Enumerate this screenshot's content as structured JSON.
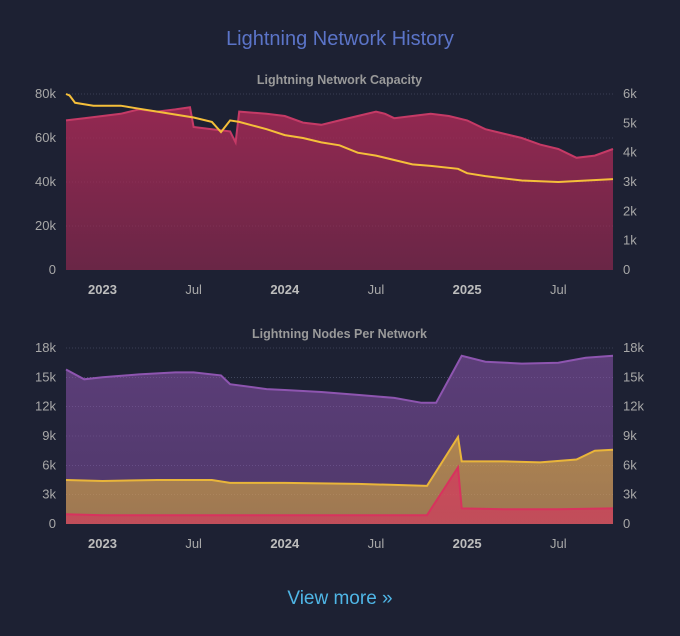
{
  "page": {
    "title": "Lightning Network History",
    "view_more": "View more »"
  },
  "colors": {
    "background": "#1d2133",
    "title": "#5b74c8",
    "link": "#4fb6e6",
    "capacity_fill": "#a82a56",
    "capacity_line": "#c53a66",
    "channels_line": "#f5bf3a",
    "clearnet": "#8e55b0",
    "tor": "#e9b53a",
    "unannounced": "#d8325e"
  },
  "chart_data": [
    {
      "type": "area",
      "title": "Lightning Network Capacity",
      "x_ticks": [
        {
          "label": "2023",
          "t": 2023.0,
          "bold": true
        },
        {
          "label": "Jul",
          "t": 2023.5,
          "bold": false
        },
        {
          "label": "2024",
          "t": 2024.0,
          "bold": true
        },
        {
          "label": "Jul",
          "t": 2024.5,
          "bold": false
        },
        {
          "label": "2025",
          "t": 2025.0,
          "bold": true
        },
        {
          "label": "Jul",
          "t": 2025.5,
          "bold": false
        }
      ],
      "xlim": [
        2022.8,
        2025.8
      ],
      "y_left": {
        "ticks": [
          "0",
          "20k",
          "40k",
          "60k",
          "80k"
        ],
        "values": [
          0,
          20000,
          40000,
          60000,
          80000
        ],
        "ylim": [
          0,
          80000
        ]
      },
      "y_right": {
        "ticks": [
          "0",
          "1k",
          "2k",
          "3k",
          "4k",
          "5k",
          "6k"
        ],
        "values": [
          0,
          1000,
          2000,
          3000,
          4000,
          5000,
          6000
        ],
        "ylim": [
          0,
          6000
        ]
      },
      "series": [
        {
          "axis": "left",
          "kind": "area",
          "points": [
            [
              2022.8,
              68000
            ],
            [
              2022.9,
              69000
            ],
            [
              2023.0,
              70000
            ],
            [
              2023.1,
              71000
            ],
            [
              2023.2,
              73000
            ],
            [
              2023.3,
              72000
            ],
            [
              2023.4,
              73000
            ],
            [
              2023.48,
              74000
            ],
            [
              2023.5,
              65000
            ],
            [
              2023.6,
              64000
            ],
            [
              2023.7,
              63000
            ],
            [
              2023.73,
              58000
            ],
            [
              2023.75,
              72000
            ],
            [
              2023.9,
              71000
            ],
            [
              2024.0,
              70000
            ],
            [
              2024.1,
              67000
            ],
            [
              2024.2,
              66000
            ],
            [
              2024.3,
              68000
            ],
            [
              2024.4,
              70000
            ],
            [
              2024.5,
              72000
            ],
            [
              2024.55,
              71000
            ],
            [
              2024.6,
              69000
            ],
            [
              2024.7,
              70000
            ],
            [
              2024.8,
              71000
            ],
            [
              2024.9,
              70000
            ],
            [
              2025.0,
              68000
            ],
            [
              2025.1,
              64000
            ],
            [
              2025.2,
              62000
            ],
            [
              2025.3,
              60000
            ],
            [
              2025.4,
              57000
            ],
            [
              2025.5,
              55000
            ],
            [
              2025.6,
              51000
            ],
            [
              2025.7,
              52000
            ],
            [
              2025.8,
              55000
            ]
          ]
        },
        {
          "axis": "right",
          "kind": "line",
          "points": [
            [
              2022.8,
              6000
            ],
            [
              2022.82,
              5950
            ],
            [
              2022.85,
              5700
            ],
            [
              2022.95,
              5600
            ],
            [
              2023.1,
              5600
            ],
            [
              2023.2,
              5500
            ],
            [
              2023.3,
              5400
            ],
            [
              2023.5,
              5200
            ],
            [
              2023.6,
              5050
            ],
            [
              2023.65,
              4700
            ],
            [
              2023.7,
              5100
            ],
            [
              2023.75,
              5050
            ],
            [
              2023.9,
              4800
            ],
            [
              2024.0,
              4600
            ],
            [
              2024.1,
              4500
            ],
            [
              2024.2,
              4350
            ],
            [
              2024.3,
              4250
            ],
            [
              2024.4,
              4000
            ],
            [
              2024.5,
              3900
            ],
            [
              2024.6,
              3750
            ],
            [
              2024.7,
              3600
            ],
            [
              2024.8,
              3550
            ],
            [
              2024.95,
              3450
            ],
            [
              2025.0,
              3300
            ],
            [
              2025.1,
              3200
            ],
            [
              2025.3,
              3050
            ],
            [
              2025.5,
              3000
            ],
            [
              2025.8,
              3100
            ]
          ]
        }
      ]
    },
    {
      "type": "area",
      "title": "Lightning Nodes Per Network",
      "x_ticks": [
        {
          "label": "2023",
          "t": 2023.0,
          "bold": true
        },
        {
          "label": "Jul",
          "t": 2023.5,
          "bold": false
        },
        {
          "label": "2024",
          "t": 2024.0,
          "bold": true
        },
        {
          "label": "Jul",
          "t": 2024.5,
          "bold": false
        },
        {
          "label": "2025",
          "t": 2025.0,
          "bold": true
        },
        {
          "label": "Jul",
          "t": 2025.5,
          "bold": false
        }
      ],
      "xlim": [
        2022.8,
        2025.8
      ],
      "y_left": {
        "ticks": [
          "0",
          "3k",
          "6k",
          "9k",
          "12k",
          "15k",
          "18k"
        ],
        "values": [
          0,
          3000,
          6000,
          9000,
          12000,
          15000,
          18000
        ],
        "ylim": [
          0,
          18000
        ]
      },
      "y_right": {
        "ticks": [
          "0",
          "3k",
          "6k",
          "9k",
          "12k",
          "15k",
          "18k"
        ],
        "values": [
          0,
          3000,
          6000,
          9000,
          12000,
          15000,
          18000
        ],
        "ylim": [
          0,
          18000
        ]
      },
      "series": [
        {
          "axis": "left",
          "kind": "stack",
          "color": "clearnet",
          "points": [
            [
              2022.8,
              15800
            ],
            [
              2022.9,
              14800
            ],
            [
              2023.0,
              15000
            ],
            [
              2023.2,
              15300
            ],
            [
              2023.4,
              15500
            ],
            [
              2023.5,
              15500
            ],
            [
              2023.65,
              15200
            ],
            [
              2023.7,
              14300
            ],
            [
              2023.9,
              13800
            ],
            [
              2024.0,
              13700
            ],
            [
              2024.2,
              13500
            ],
            [
              2024.4,
              13200
            ],
            [
              2024.6,
              12900
            ],
            [
              2024.75,
              12400
            ],
            [
              2024.83,
              12400
            ],
            [
              2024.97,
              17200
            ],
            [
              2025.1,
              16600
            ],
            [
              2025.3,
              16400
            ],
            [
              2025.5,
              16500
            ],
            [
              2025.65,
              17000
            ],
            [
              2025.8,
              17200
            ]
          ]
        },
        {
          "axis": "left",
          "kind": "stack",
          "color": "tor",
          "points": [
            [
              2022.8,
              4500
            ],
            [
              2023.0,
              4400
            ],
            [
              2023.3,
              4500
            ],
            [
              2023.6,
              4500
            ],
            [
              2023.7,
              4200
            ],
            [
              2024.0,
              4200
            ],
            [
              2024.4,
              4100
            ],
            [
              2024.6,
              4000
            ],
            [
              2024.78,
              3900
            ],
            [
              2024.95,
              8900
            ],
            [
              2024.97,
              6400
            ],
            [
              2025.2,
              6400
            ],
            [
              2025.4,
              6300
            ],
            [
              2025.6,
              6600
            ],
            [
              2025.7,
              7500
            ],
            [
              2025.8,
              7600
            ]
          ]
        },
        {
          "axis": "left",
          "kind": "stack",
          "color": "unannounced",
          "points": [
            [
              2022.8,
              1000
            ],
            [
              2023.0,
              900
            ],
            [
              2023.5,
              900
            ],
            [
              2024.0,
              900
            ],
            [
              2024.5,
              900
            ],
            [
              2024.78,
              900
            ],
            [
              2024.95,
              5800
            ],
            [
              2024.97,
              1600
            ],
            [
              2025.2,
              1500
            ],
            [
              2025.5,
              1500
            ],
            [
              2025.8,
              1600
            ]
          ]
        }
      ]
    }
  ]
}
